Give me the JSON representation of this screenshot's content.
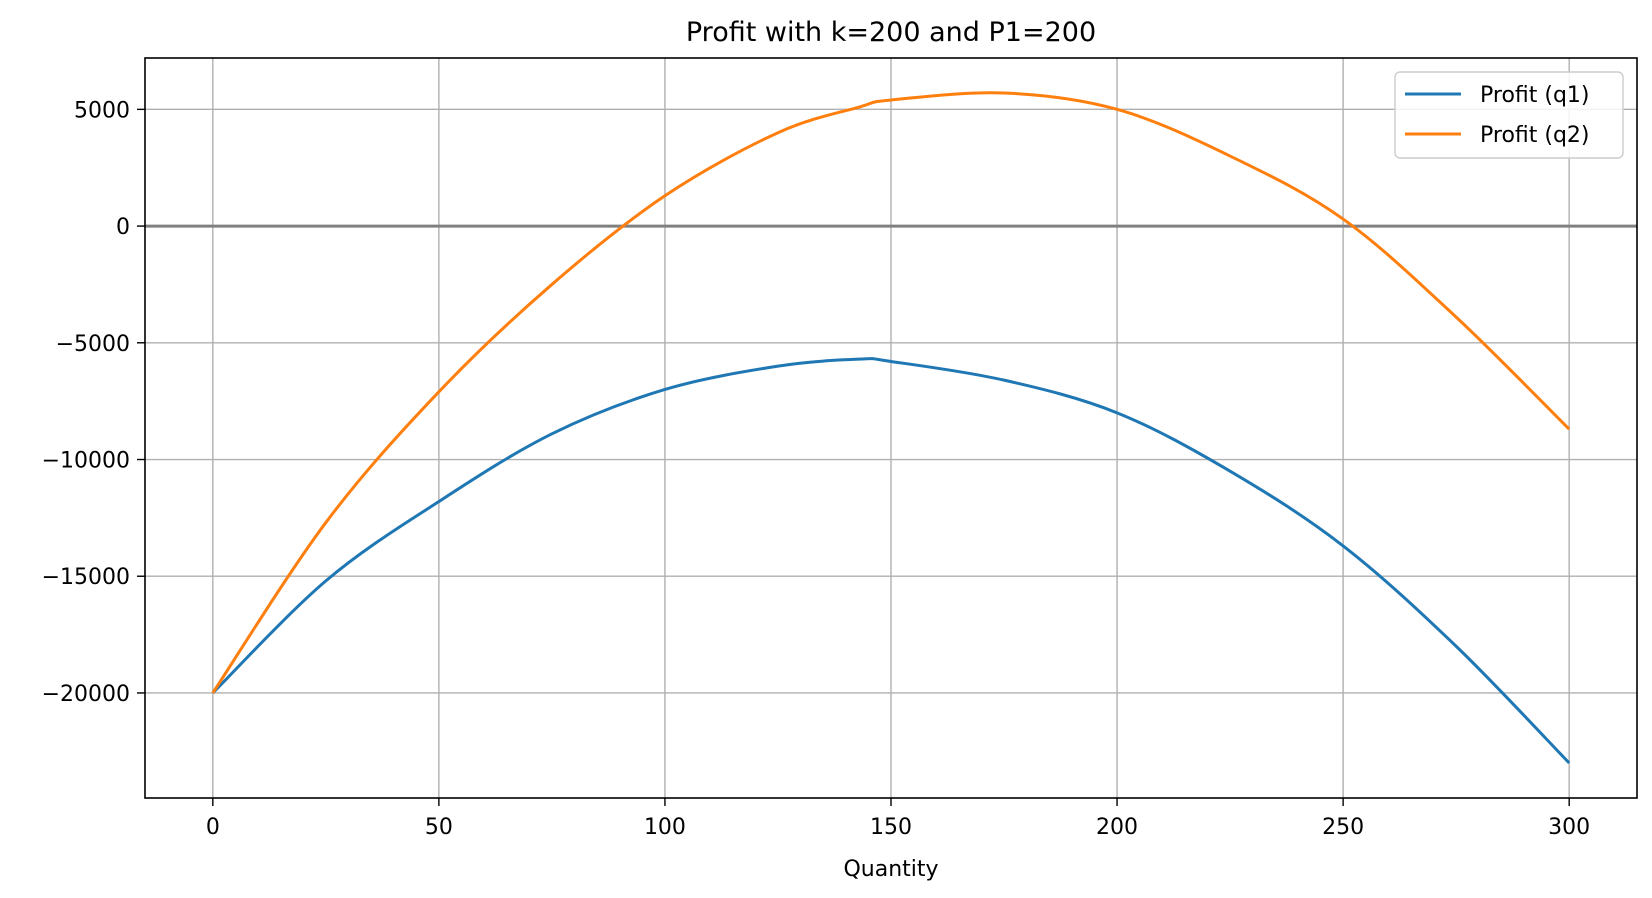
{
  "chart_data": {
    "type": "line",
    "title": "Profit with k=200 and P1=200",
    "xlabel": "Quantity",
    "ylabel": "",
    "xlim": [
      -15,
      315
    ],
    "ylim": [
      -24500,
      7200
    ],
    "xticks": [
      0,
      50,
      100,
      150,
      200,
      250,
      300
    ],
    "xtick_labels": [
      "0",
      "50",
      "100",
      "150",
      "200",
      "250",
      "300"
    ],
    "yticks": [
      5000,
      0,
      -5000,
      -10000,
      -15000,
      -20000
    ],
    "ytick_labels": [
      "5000",
      "0",
      "−5000",
      "−10000",
      "−15000",
      "−20000"
    ],
    "grid": true,
    "legend_position": "top-right",
    "reference_line": {
      "y": 0,
      "color": "#808080"
    },
    "x": [
      0,
      25,
      50,
      75,
      100,
      125,
      143,
      150,
      175,
      200,
      225,
      250,
      275,
      300
    ],
    "series": [
      {
        "name": "Profit (q1)",
        "color": "#1f77b4",
        "values": [
          -20000,
          -15200,
          -11800,
          -8900,
          -7000,
          -6000,
          -5700,
          -5800,
          -6600,
          -8000,
          -10500,
          -13700,
          -18000,
          -23000
        ]
      },
      {
        "name": "Profit (q2)",
        "color": "#ff7f0e",
        "values": [
          -20000,
          -12700,
          -7100,
          -2500,
          1300,
          4000,
          5100,
          5400,
          5700,
          5000,
          3000,
          300,
          -3900,
          -8700
        ]
      }
    ]
  }
}
